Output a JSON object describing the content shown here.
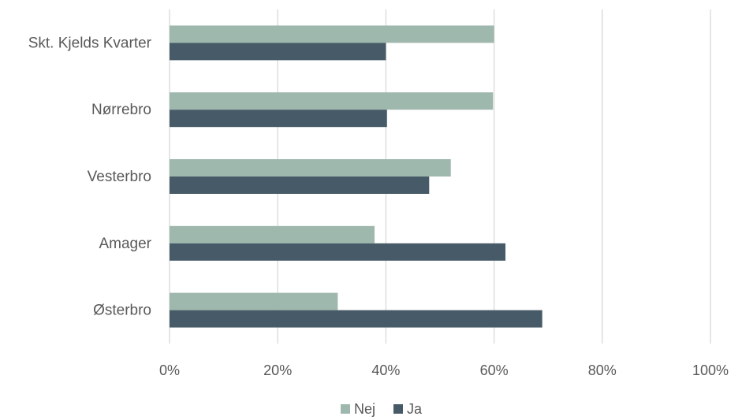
{
  "chart_data": {
    "type": "bar",
    "orientation": "horizontal",
    "categories": [
      "Skt. Kjelds Kvarter",
      "Nørrebro",
      "Vesterbro",
      "Amager",
      "Østerbro"
    ],
    "series": [
      {
        "name": "Nej",
        "color": "#9fb8ad",
        "values": [
          60,
          59.8,
          52,
          37.9,
          31.1
        ]
      },
      {
        "name": "Ja",
        "color": "#475a67",
        "values": [
          40,
          40.2,
          48,
          62.1,
          68.9
        ]
      }
    ],
    "x_ticks": [
      "0%",
      "20%",
      "40%",
      "60%",
      "80%",
      "100%"
    ],
    "xlim": [
      0,
      100
    ],
    "grid": true,
    "legend_position": "bottom"
  }
}
